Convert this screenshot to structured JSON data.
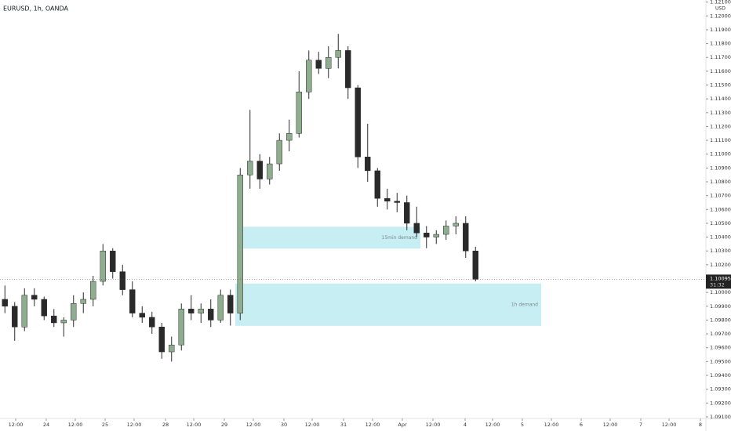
{
  "chart_data": {
    "type": "candlestick",
    "title": "EURUSD, 1h, OANDA",
    "y_unit": "USD",
    "open": [
      1.0995,
      1.099,
      1.0975,
      1.0998,
      1.0995,
      1.0983,
      1.0978,
      1.098,
      1.0992,
      1.0995,
      1.1008,
      1.103,
      1.1015,
      1.1002,
      1.0985,
      1.0982,
      1.0975,
      1.0957,
      1.0962,
      1.0988,
      1.0985,
      1.0988,
      1.098,
      1.0998,
      1.0985,
      1.1085,
      1.1095,
      1.1082,
      1.1093,
      1.111,
      1.1115,
      1.1145,
      1.1168,
      1.1162,
      1.117,
      1.1175,
      1.1148,
      1.1098,
      1.1088,
      1.1068,
      1.1066,
      1.1065,
      1.105,
      1.1043,
      1.104,
      1.1042,
      1.1048,
      1.105,
      1.103
    ],
    "high": [
      1.1005,
      1.0993,
      1.1003,
      1.1003,
      1.0997,
      1.0988,
      1.0982,
      1.0998,
      1.1,
      1.1012,
      1.1035,
      1.1032,
      1.102,
      1.1008,
      1.099,
      1.0986,
      1.0978,
      1.0968,
      1.0992,
      1.0998,
      1.0992,
      1.0995,
      1.1002,
      1.1002,
      1.109,
      1.1132,
      1.11,
      1.1098,
      1.1115,
      1.1125,
      1.116,
      1.1175,
      1.1174,
      1.1178,
      1.1187,
      1.1178,
      1.115,
      1.1122,
      1.109,
      1.1075,
      1.1072,
      1.107,
      1.1062,
      1.1048,
      1.1045,
      1.1052,
      1.1055,
      1.1055,
      1.1033
    ],
    "low": [
      1.0985,
      1.0965,
      1.0972,
      1.099,
      1.098,
      1.0975,
      1.0968,
      1.0975,
      1.0985,
      1.099,
      1.1005,
      1.101,
      1.0998,
      1.0982,
      1.0978,
      1.097,
      1.0952,
      1.095,
      1.0958,
      1.098,
      1.0978,
      1.0975,
      1.0978,
      1.0976,
      1.098,
      1.1075,
      1.1075,
      1.1078,
      1.1088,
      1.1102,
      1.1112,
      1.114,
      1.1158,
      1.1155,
      1.1162,
      1.114,
      1.109,
      1.108,
      1.1062,
      1.106,
      1.1058,
      1.1045,
      1.104,
      1.1032,
      1.1035,
      1.1038,
      1.1042,
      1.1025,
      1.1008
    ],
    "close": [
      1.099,
      1.0975,
      1.0998,
      1.0995,
      1.0983,
      1.0978,
      1.098,
      1.0992,
      1.0995,
      1.1008,
      1.103,
      1.1015,
      1.1002,
      1.0985,
      1.0982,
      1.0975,
      1.0957,
      1.0962,
      1.0988,
      1.0985,
      1.0988,
      1.098,
      1.0998,
      1.0985,
      1.1085,
      1.1095,
      1.1082,
      1.1093,
      1.111,
      1.1115,
      1.1145,
      1.1168,
      1.1162,
      1.117,
      1.1175,
      1.1148,
      1.1098,
      1.1088,
      1.1068,
      1.1066,
      1.1065,
      1.105,
      1.1043,
      1.104,
      1.1042,
      1.1048,
      1.105,
      1.103,
      1.10095
    ],
    "up_color": "#8fae8f",
    "down_color": "#2a2a2a",
    "xlim": [
      -0.5,
      71.5
    ],
    "xticks": [
      {
        "value": 1.1,
        "label": "12:00"
      },
      {
        "value": 4.22,
        "label": "24"
      },
      {
        "value": 7.18,
        "label": "12:00"
      },
      {
        "value": 10.22,
        "label": "25"
      },
      {
        "value": 13.18,
        "label": "12:00"
      },
      {
        "value": 16.38,
        "label": "28"
      },
      {
        "value": 19.26,
        "label": "12:00"
      },
      {
        "value": 22.38,
        "label": "29"
      },
      {
        "value": 25.34,
        "label": "12:00"
      },
      {
        "value": 28.46,
        "label": "30"
      },
      {
        "value": 31.34,
        "label": "12:00"
      },
      {
        "value": 34.54,
        "label": "31"
      },
      {
        "value": 37.5,
        "label": "12:00"
      },
      {
        "value": 40.54,
        "label": "Apr"
      },
      {
        "value": 43.66,
        "label": "12:00"
      },
      {
        "value": 46.94,
        "label": "4"
      },
      {
        "value": 49.74,
        "label": "12:00"
      },
      {
        "value": 52.78,
        "label": "5"
      },
      {
        "value": 55.74,
        "label": "12:00"
      },
      {
        "value": 58.78,
        "label": "6"
      },
      {
        "value": 61.74,
        "label": "12:00"
      },
      {
        "value": 64.86,
        "label": "7"
      },
      {
        "value": 67.74,
        "label": "12:00"
      },
      {
        "value": 70.94,
        "label": "8"
      }
    ],
    "ylim": [
      1.09026,
      1.12115
    ],
    "yticks": [
      {
        "value": 1.091,
        "label": "1.09100"
      },
      {
        "value": 1.093,
        "label": "1.09300"
      },
      {
        "value": 1.095,
        "label": "1.09500"
      },
      {
        "value": 1.097,
        "label": "1.09700"
      },
      {
        "value": 1.099,
        "label": "1.09900"
      },
      {
        "value": 1.101,
        "label": "1.10100"
      },
      {
        "value": 1.103,
        "label": "1.10300"
      },
      {
        "value": 1.105,
        "label": "1.10500"
      },
      {
        "value": 1.107,
        "label": "1.10700"
      },
      {
        "value": 1.109,
        "label": "1.10900"
      },
      {
        "value": 1.111,
        "label": "1.11100"
      },
      {
        "value": 1.113,
        "label": "1.11300"
      },
      {
        "value": 1.115,
        "label": "1.11500"
      },
      {
        "value": 1.117,
        "label": "1.11700"
      },
      {
        "value": 1.119,
        "label": "1.11900"
      },
      {
        "value": 1.121,
        "label": "1.12100"
      }
    ],
    "minor_yticks": [
      {
        "value": 1.092,
        "label": "1.09200"
      },
      {
        "value": 1.094,
        "label": "1.09400"
      },
      {
        "value": 1.096,
        "label": "1.09600"
      },
      {
        "value": 1.098,
        "label": "1.09800"
      },
      {
        "value": 1.1,
        "label": "1.10000"
      },
      {
        "value": 1.102,
        "label": "1.10200"
      },
      {
        "value": 1.104,
        "label": "1.10400"
      },
      {
        "value": 1.106,
        "label": "1.10600"
      },
      {
        "value": 1.108,
        "label": "1.10800"
      },
      {
        "value": 1.11,
        "label": "1.11000"
      },
      {
        "value": 1.112,
        "label": "1.11200"
      },
      {
        "value": 1.114,
        "label": "1.11400"
      },
      {
        "value": 1.116,
        "label": "1.11600"
      },
      {
        "value": 1.118,
        "label": "1.11800"
      },
      {
        "value": 1.12,
        "label": "1.12000"
      }
    ],
    "zones": [
      {
        "label": "15min demand",
        "color": "#c7eef3",
        "x": [
          24.06,
          42.38
        ],
        "y": [
          1.10317,
          1.10475
        ]
      },
      {
        "label": "1h demand",
        "color": "#c7eef3",
        "x": [
          23.5,
          54.7
        ],
        "y": [
          1.09758,
          1.10064
        ]
      }
    ],
    "last_price": 1.10095,
    "countdown": "31:32"
  }
}
